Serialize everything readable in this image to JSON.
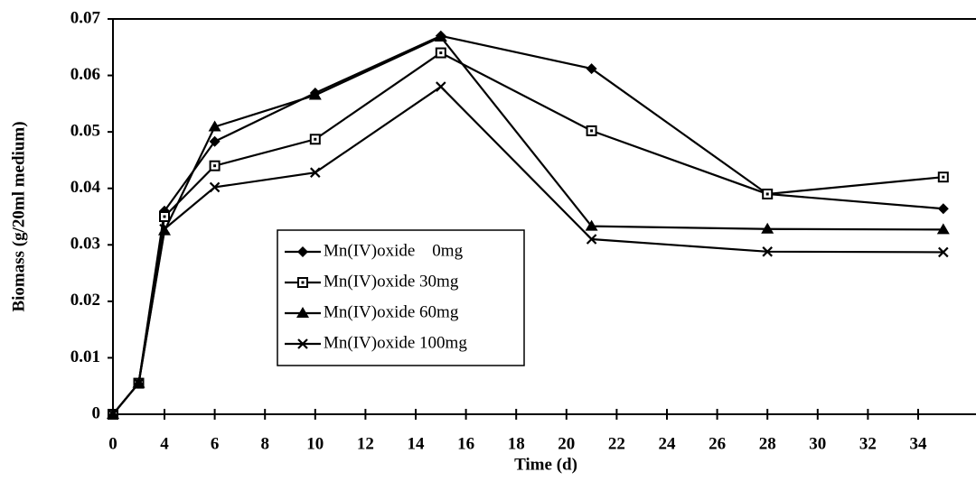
{
  "chart_data": {
    "type": "line",
    "xlabel": "Time (d)",
    "ylabel": "Biomass (g/20ml medium)",
    "x": [
      0,
      2,
      4,
      6,
      10,
      15,
      21,
      28,
      35
    ],
    "series": [
      {
        "name": "Mn(IV)oxide    0mg",
        "color": "#000000",
        "marker": "diamond",
        "values": [
          0,
          0.0055,
          0.036,
          0.0483,
          0.0569,
          0.067,
          0.0612,
          0.039,
          0.0364
        ]
      },
      {
        "name": "Mn(IV)oxide 30mg",
        "color": "#000000",
        "marker": "square",
        "values": [
          0,
          0.0055,
          0.035,
          0.044,
          0.0487,
          0.064,
          0.0502,
          0.039,
          0.042
        ]
      },
      {
        "name": "Mn(IV)oxide 60mg",
        "color": "#000000",
        "marker": "triangle",
        "values": [
          0,
          0.0055,
          0.0325,
          0.0509,
          0.0565,
          0.0668,
          0.0333,
          0.0328,
          0.0327
        ]
      },
      {
        "name": "Mn(IV)oxide 100mg",
        "color": "#000000",
        "marker": "x",
        "values": [
          0,
          0.0055,
          0.0328,
          0.0402,
          0.0428,
          0.058,
          0.031,
          0.0288,
          0.0287
        ]
      }
    ],
    "xlim": [
      0,
      35
    ],
    "xticks": [
      0,
      4,
      6,
      8,
      10,
      12,
      14,
      16,
      18,
      20,
      22,
      24,
      26,
      28,
      30,
      32,
      34
    ],
    "ylim": [
      0,
      0.07
    ],
    "yticks": [
      0,
      0.01,
      0.02,
      0.03,
      0.04,
      0.05,
      0.06,
      0.07
    ],
    "grid": false,
    "legend": "center-left"
  }
}
